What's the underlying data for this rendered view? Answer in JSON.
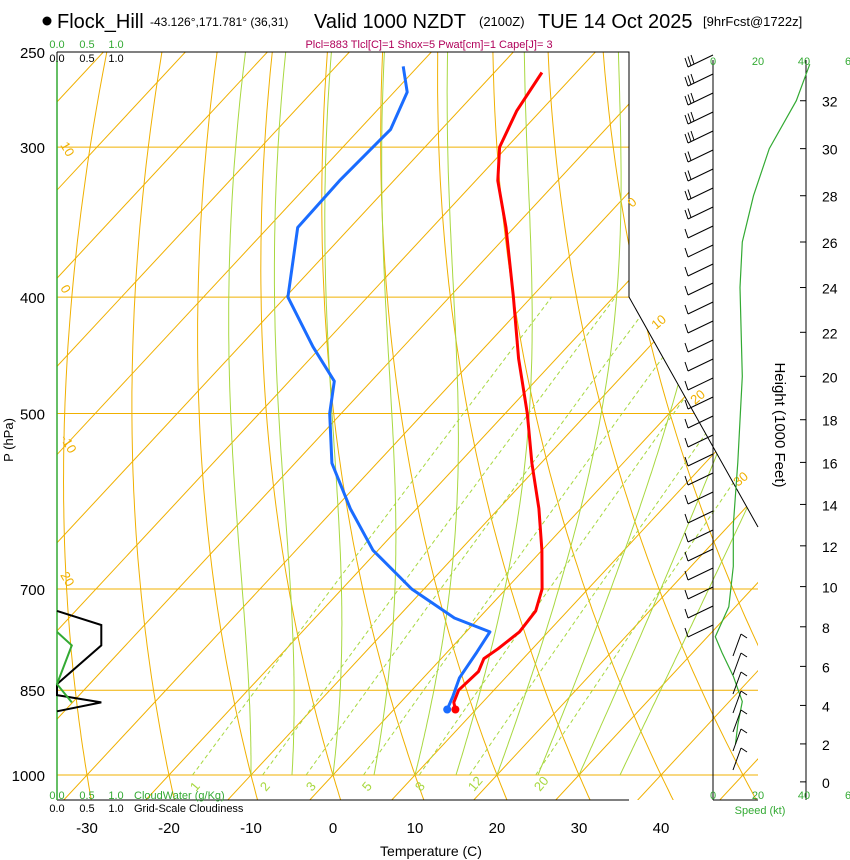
{
  "header": {
    "station": "Flock_Hill",
    "coords": "-43.126°,171.781° (36,31)",
    "valid": "Valid 1000 NZDT",
    "zulu": "(2100Z)",
    "date": "TUE 14 Oct 2025",
    "forecast": "[9hrFcst@1722z]",
    "indices": "Plcl=883 Tlcl[C]=1 Shox=5 Pwat[cm]=1 Cape[J]= 3"
  },
  "axes": {
    "xlabel": "Temperature (C)",
    "ylabel": "P (hPa)",
    "height_label": "Height (1000 Feet)",
    "speed_label": "Speed (kt)",
    "cloudwater_label": "CloudWater (g/Kg)",
    "cloudiness_label": "Grid-Scale Cloudiness"
  },
  "colors": {
    "background": "#ffffff",
    "isotherm": "#f0b000",
    "dry_adiabat": "#f0b000",
    "moist_adiabat": "#a8d840",
    "mixing_ratio": "#a8d840",
    "temperature": "#ff0000",
    "dewpoint": "#1a6cff",
    "wind_speed": "#33aa33",
    "cloudwater": "#33aa33",
    "cloudiness": "#000000",
    "label_green": "#33aa33",
    "index_text": "#b0005a"
  },
  "chart_data": {
    "type": "skew-t",
    "x_ticks": [
      "-30",
      "-20",
      "-10",
      "0",
      "10",
      "20",
      "30",
      "40"
    ],
    "p_ticks": [
      "250",
      "300",
      "400",
      "500",
      "700",
      "850",
      "1000"
    ],
    "height_ticks": [
      "0",
      "2",
      "4",
      "6",
      "8",
      "10",
      "12",
      "14",
      "16",
      "18",
      "20",
      "22",
      "24",
      "26",
      "28",
      "30",
      "32"
    ],
    "speed_ticks": [
      "0",
      "20",
      "40"
    ],
    "cloud_ticks": [
      "0.0",
      "0.5",
      "1.0"
    ],
    "cloud_ticks_top_green": [
      "0.0",
      "0.5",
      "1.0"
    ],
    "speed_ticks_top": [
      "0",
      "20",
      "40",
      "6"
    ],
    "speed_ticks_bottom": [
      "0",
      "20",
      "40",
      "6"
    ],
    "adiabat_labels": [
      "10",
      "0",
      "-10",
      "20"
    ],
    "isotherm_labels": [
      "0",
      "10",
      "20",
      "30"
    ],
    "mixing_ratio_labels": [
      "1",
      "2",
      "3",
      "5",
      "8",
      "12",
      "20"
    ],
    "temperature": [
      {
        "p": 882,
        "t": 7.5
      },
      {
        "p": 870,
        "t": 6.5
      },
      {
        "p": 850,
        "t": 5.7
      },
      {
        "p": 820,
        "t": 6.0
      },
      {
        "p": 800,
        "t": 5.2
      },
      {
        "p": 785,
        "t": 5.8
      },
      {
        "p": 760,
        "t": 6.5
      },
      {
        "p": 730,
        "t": 6.1
      },
      {
        "p": 700,
        "t": 4.4
      },
      {
        "p": 650,
        "t": 0.0
      },
      {
        "p": 600,
        "t": -5.1
      },
      {
        "p": 550,
        "t": -11.1
      },
      {
        "p": 500,
        "t": -17.3
      },
      {
        "p": 450,
        "t": -24.6
      },
      {
        "p": 400,
        "t": -32.2
      },
      {
        "p": 350,
        "t": -41.0
      },
      {
        "p": 320,
        "t": -47.3
      },
      {
        "p": 300,
        "t": -50.9
      },
      {
        "p": 280,
        "t": -52.9
      },
      {
        "p": 260,
        "t": -54.2
      }
    ],
    "dewpoint": [
      {
        "p": 882,
        "t": 6.5
      },
      {
        "p": 860,
        "t": 5.7
      },
      {
        "p": 830,
        "t": 4.4
      },
      {
        "p": 790,
        "t": 3.6
      },
      {
        "p": 760,
        "t": 2.9
      },
      {
        "p": 740,
        "t": -3.0
      },
      {
        "p": 700,
        "t": -11.5
      },
      {
        "p": 650,
        "t": -20.6
      },
      {
        "p": 600,
        "t": -28.1
      },
      {
        "p": 550,
        "t": -35.5
      },
      {
        "p": 500,
        "t": -41.4
      },
      {
        "p": 470,
        "t": -44.5
      },
      {
        "p": 440,
        "t": -51.0
      },
      {
        "p": 400,
        "t": -59.7
      },
      {
        "p": 350,
        "t": -66.4
      },
      {
        "p": 320,
        "t": -66.6
      },
      {
        "p": 290,
        "t": -66.2
      },
      {
        "p": 270,
        "t": -68.4
      },
      {
        "p": 257,
        "t": -71.8
      }
    ],
    "wind_speed_profile": [
      {
        "h": 2.0,
        "kt": 10
      },
      {
        "h": 3.0,
        "kt": 11
      },
      {
        "h": 4.2,
        "kt": 13
      },
      {
        "h": 5.5,
        "kt": 9
      },
      {
        "h": 6.7,
        "kt": 4
      },
      {
        "h": 7.5,
        "kt": 1
      },
      {
        "h": 9.0,
        "kt": 7
      },
      {
        "h": 11.0,
        "kt": 9
      },
      {
        "h": 13.0,
        "kt": 9
      },
      {
        "h": 16.0,
        "kt": 11
      },
      {
        "h": 20.0,
        "kt": 13
      },
      {
        "h": 24.0,
        "kt": 12
      },
      {
        "h": 26.0,
        "kt": 13
      },
      {
        "h": 28.0,
        "kt": 18
      },
      {
        "h": 30.0,
        "kt": 25
      },
      {
        "h": 32.0,
        "kt": 37
      },
      {
        "h": 33.5,
        "kt": 43
      }
    ],
    "cloudiness_profile": [
      {
        "p": 730,
        "v": 0.0
      },
      {
        "p": 750,
        "v": 0.75
      },
      {
        "p": 780,
        "v": 0.75
      },
      {
        "p": 840,
        "v": 0.0
      },
      {
        "p": 858,
        "v": 0.0
      },
      {
        "p": 870,
        "v": 0.75
      },
      {
        "p": 885,
        "v": 0.0
      }
    ],
    "cloudwater_profile": [
      {
        "p": 760,
        "v": 0.0
      },
      {
        "p": 780,
        "v": 0.25
      },
      {
        "p": 840,
        "v": 0.0
      },
      {
        "p": 870,
        "v": 0.25
      }
    ]
  }
}
